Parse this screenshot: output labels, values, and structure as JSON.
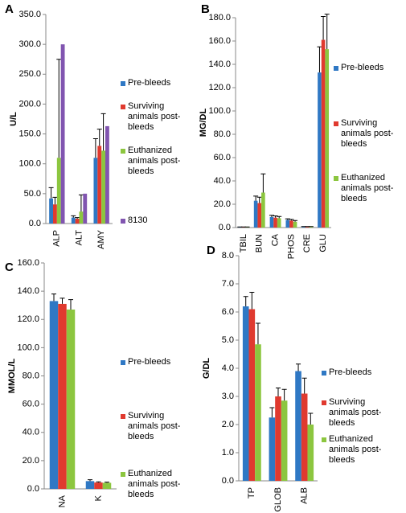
{
  "chart_data": [
    {
      "type": "bar",
      "panel": "A",
      "ylabel": "U/L",
      "categories": [
        "ALP",
        "ALT",
        "AMY"
      ],
      "series": [
        {
          "name": "Pre-bleeds",
          "color": "#2f78c4",
          "values": [
            42,
            10,
            110
          ],
          "errors": [
            18,
            3,
            32
          ]
        },
        {
          "name": "Surviving animals post-bleeds",
          "color": "#e03a2f",
          "values": [
            32,
            8,
            130
          ],
          "errors": [
            12,
            2,
            28
          ]
        },
        {
          "name": "Euthanized animals post-bleeds",
          "color": "#8cc63f",
          "values": [
            110,
            20,
            122
          ],
          "errors": [
            165,
            28,
            62
          ]
        },
        {
          "name": "8130",
          "color": "#8155b0",
          "values": [
            300,
            50,
            163
          ]
        }
      ],
      "ylim": [
        0,
        350
      ],
      "yticks": [
        {
          "value": 0,
          "label": "0.0"
        },
        {
          "value": 50,
          "label": "50.0"
        },
        {
          "value": 100,
          "label": "100.0"
        },
        {
          "value": 150,
          "label": "150.0"
        },
        {
          "value": 200,
          "label": "200.0"
        },
        {
          "value": 250,
          "label": "250.0"
        },
        {
          "value": 300,
          "label": "300.0"
        },
        {
          "value": 350,
          "label": "350.0"
        }
      ]
    },
    {
      "type": "bar",
      "panel": "B",
      "ylabel": "MG/DL",
      "categories": [
        "TBIL",
        "BUN",
        "CA",
        "PHOS",
        "CRE",
        "GLU"
      ],
      "series": [
        {
          "name": "Pre-bleeds",
          "color": "#2f78c4",
          "values": [
            0.3,
            23,
            9,
            6.5,
            0.6,
            133
          ],
          "errors": [
            0.2,
            4,
            1.5,
            1,
            0.3,
            22
          ]
        },
        {
          "name": "Surviving animals post-bleeds",
          "color": "#e03a2f",
          "values": [
            0.3,
            21,
            8.5,
            6,
            0.6,
            161
          ],
          "errors": [
            0.2,
            5,
            1.5,
            1,
            0.3,
            20
          ]
        },
        {
          "name": "Euthanized animals post-bleeds",
          "color": "#8cc63f",
          "values": [
            0.3,
            30,
            8,
            5,
            0.6,
            153
          ],
          "errors": [
            0.2,
            16,
            1.5,
            1,
            0.3,
            30
          ]
        }
      ],
      "ylim": [
        0,
        180
      ],
      "yticks": [
        {
          "value": 0,
          "label": "0.0"
        },
        {
          "value": 20,
          "label": "20.0"
        },
        {
          "value": 40,
          "label": "40.0"
        },
        {
          "value": 60,
          "label": "60.0"
        },
        {
          "value": 80,
          "label": "80.0"
        },
        {
          "value": 100,
          "label": "100.0"
        },
        {
          "value": 120,
          "label": "120.0"
        },
        {
          "value": 140,
          "label": "140.0"
        },
        {
          "value": 160,
          "label": "160.0"
        },
        {
          "value": 180,
          "label": "180.0"
        }
      ]
    },
    {
      "type": "bar",
      "panel": "C",
      "ylabel": "MMOL/L",
      "categories": [
        "NA",
        "K"
      ],
      "series": [
        {
          "name": "Pre-bleeds",
          "color": "#2f78c4",
          "values": [
            133,
            5.5
          ],
          "errors": [
            5,
            1
          ]
        },
        {
          "name": "Surviving animals post-bleeds",
          "color": "#e03a2f",
          "values": [
            131,
            4.5
          ],
          "errors": [
            4,
            0.5
          ]
        },
        {
          "name": "Euthanized animals post-bleeds",
          "color": "#8cc63f",
          "values": [
            127,
            4.3
          ],
          "errors": [
            7,
            0.5
          ]
        }
      ],
      "ylim": [
        0,
        160
      ],
      "yticks": [
        {
          "value": 0,
          "label": "0.0"
        },
        {
          "value": 20,
          "label": "20.0"
        },
        {
          "value": 40,
          "label": "40.0"
        },
        {
          "value": 60,
          "label": "60.0"
        },
        {
          "value": 80,
          "label": "80.0"
        },
        {
          "value": 100,
          "label": "100.0"
        },
        {
          "value": 120,
          "label": "120.0"
        },
        {
          "value": 140,
          "label": "140.0"
        },
        {
          "value": 160,
          "label": "160.0"
        }
      ]
    },
    {
      "type": "bar",
      "panel": "D",
      "ylabel": "G/DL",
      "categories": [
        "TP",
        "GLOB",
        "ALB"
      ],
      "series": [
        {
          "name": "Pre-bleeds",
          "color": "#2f78c4",
          "values": [
            6.2,
            2.25,
            3.9
          ],
          "errors": [
            0.35,
            0.35,
            0.25
          ]
        },
        {
          "name": "Surviving animals post-bleeds",
          "color": "#e03a2f",
          "values": [
            6.1,
            3.0,
            3.1
          ],
          "errors": [
            0.6,
            0.3,
            0.55
          ]
        },
        {
          "name": "Euthanized animals post-bleeds",
          "color": "#8cc63f",
          "values": [
            4.85,
            2.85,
            2.0
          ],
          "errors": [
            0.75,
            0.4,
            0.4
          ]
        }
      ],
      "ylim": [
        0,
        8
      ],
      "yticks": [
        {
          "value": 0,
          "label": "0.0"
        },
        {
          "value": 1,
          "label": "1.0"
        },
        {
          "value": 2,
          "label": "2.0"
        },
        {
          "value": 3,
          "label": "3.0"
        },
        {
          "value": 4,
          "label": "4.0"
        },
        {
          "value": 5,
          "label": "5.0"
        },
        {
          "value": 6,
          "label": "6.0"
        },
        {
          "value": 7,
          "label": "7.0"
        },
        {
          "value": 8,
          "label": "8.0"
        }
      ]
    }
  ]
}
